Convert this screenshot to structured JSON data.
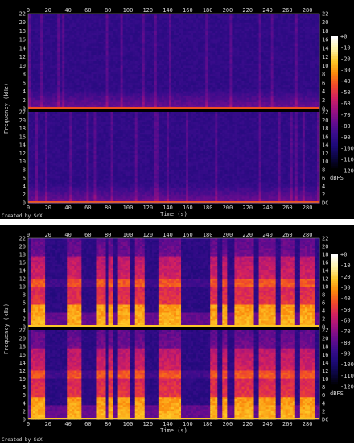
{
  "colors": {
    "background": "#000000",
    "separator": "#ffffff",
    "palette": [
      "#000000",
      "#0b0640",
      "#1c0a78",
      "#3a0c8c",
      "#6a0c8e",
      "#a1127f",
      "#d4215f",
      "#f04a2a",
      "#fb8a0c",
      "#fdc827",
      "#fff4a8",
      "#ffffff"
    ]
  },
  "spectrograms": [
    {
      "name": "top",
      "x_label": "Time (s)",
      "y_label": "Frequency (kHz)",
      "x_ticks": [
        "0",
        "20",
        "40",
        "60",
        "80",
        "100",
        "120",
        "140",
        "160",
        "180",
        "200",
        "220",
        "240",
        "260",
        "280"
      ],
      "y_ticks_upper": [
        "22",
        "20",
        "18",
        "16",
        "14",
        "12",
        "10",
        "8",
        "6",
        "4",
        "2",
        "0"
      ],
      "y_ticks_lower": [
        "22",
        "20",
        "18",
        "16",
        "14",
        "12",
        "10",
        "8",
        "6",
        "4",
        "2",
        "0"
      ],
      "y_ticks_lower_right": [
        "22",
        "20",
        "18",
        "16",
        "14",
        "12",
        "10",
        "8",
        "6",
        "4",
        "2",
        "DC"
      ],
      "colorbar_ticks": [
        "+0",
        "-10",
        "-20",
        "-30",
        "-40",
        "-50",
        "-60",
        "-70",
        "-80",
        "-90",
        "-100",
        "-110",
        "-120"
      ],
      "colorbar_unit": "dBFS",
      "credit": "Created by SoX",
      "activity": "sparse"
    },
    {
      "name": "bottom",
      "x_label": "Time (s)",
      "y_label": "Frequency (kHz)",
      "x_ticks": [
        "0",
        "20",
        "40",
        "60",
        "80",
        "100",
        "120",
        "140",
        "160",
        "180",
        "200",
        "220",
        "240",
        "260",
        "280"
      ],
      "y_ticks_upper": [
        "22",
        "20",
        "18",
        "16",
        "14",
        "12",
        "10",
        "8",
        "6",
        "4",
        "2",
        "0"
      ],
      "y_ticks_lower": [
        "22",
        "20",
        "18",
        "16",
        "14",
        "12",
        "10",
        "8",
        "6",
        "4",
        "2",
        "0"
      ],
      "y_ticks_lower_right": [
        "22",
        "20",
        "18",
        "16",
        "14",
        "12",
        "10",
        "8",
        "6",
        "4",
        "2",
        "DC"
      ],
      "colorbar_ticks": [
        "+0",
        "-10",
        "-20",
        "-30",
        "-40",
        "-50",
        "-60",
        "-70",
        "-80",
        "-90",
        "-100",
        "-110",
        "-120"
      ],
      "colorbar_unit": "dBFS",
      "credit": "Created by SoX",
      "activity": "speech",
      "speech_segments": [
        [
          2,
          16
        ],
        [
          38,
          52
        ],
        [
          66,
          76
        ],
        [
          79,
          83
        ],
        [
          88,
          95
        ],
        [
          97,
          102
        ],
        [
          107,
          116
        ],
        [
          130,
          146
        ],
        [
          148,
          152
        ],
        [
          182,
          188
        ],
        [
          194,
          198
        ],
        [
          206,
          226
        ],
        [
          229,
          246
        ],
        [
          252,
          267
        ],
        [
          272,
          286
        ]
      ]
    }
  ]
}
